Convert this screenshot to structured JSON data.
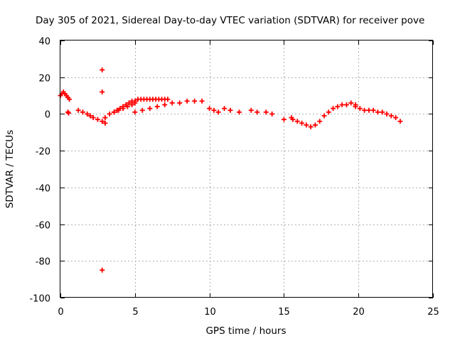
{
  "chart_data": {
    "type": "scatter",
    "title": "Day 305 of 2021, Sidereal Day-to-day VTEC variation (SDTVAR) for receiver pove",
    "xlabel": "GPS time / hours",
    "ylabel": "SDTVAR / TECUs",
    "xlim": [
      0,
      25
    ],
    "ylim": [
      -100,
      40
    ],
    "x_ticks": [
      0,
      5,
      10,
      15,
      20,
      25
    ],
    "y_ticks": [
      40,
      20,
      0,
      -20,
      -40,
      -60,
      -80,
      -100
    ],
    "grid": true,
    "marker": "plus",
    "color": "#ff0000",
    "series": [
      {
        "name": "SDTVAR",
        "segments": [
          {
            "x": [
              0.0,
              0.1,
              0.2,
              0.3,
              0.4,
              0.5,
              0.6
            ],
            "y": [
              10,
              11,
              12,
              11,
              10,
              9,
              8
            ]
          },
          {
            "x": [
              0.5,
              0.55
            ],
            "y": [
              1,
              0.5
            ]
          },
          {
            "x": [
              1.2,
              1.5,
              1.8,
              2.0,
              2.2,
              2.5,
              2.8,
              3.0
            ],
            "y": [
              2,
              1,
              0,
              -1,
              -2,
              -3,
              -4,
              -5
            ]
          },
          {
            "x": [
              3.0,
              3.3,
              3.6,
              3.9,
              4.2,
              4.5,
              4.8,
              5.0
            ],
            "y": [
              -2,
              0,
              1,
              2,
              3,
              4,
              5,
              6
            ]
          },
          {
            "x": [
              3.6,
              3.8,
              4.0,
              4.2,
              4.4,
              4.6,
              4.8,
              5.0,
              5.2,
              5.4,
              5.6,
              5.8,
              6.0,
              6.2,
              6.4,
              6.6,
              6.8,
              7.0,
              7.2
            ],
            "y": [
              1,
              2,
              3,
              4,
              5,
              6,
              7,
              7,
              8,
              8,
              8,
              8,
              8,
              8,
              8,
              8,
              8,
              8,
              8
            ]
          },
          {
            "x": [
              5.0,
              5.5,
              6.0,
              6.5,
              7.0,
              7.5,
              8.0,
              8.5,
              9.0,
              9.5
            ],
            "y": [
              1,
              2,
              3,
              4,
              5,
              6,
              6,
              7,
              7,
              7
            ]
          },
          {
            "x": [
              10.0,
              10.3,
              10.6,
              11.0,
              11.4,
              12.0
            ],
            "y": [
              3,
              2,
              1,
              3,
              2,
              1
            ]
          },
          {
            "x": [
              12.8,
              13.2,
              13.8,
              14.2,
              15.0,
              15.5
            ],
            "y": [
              2,
              1,
              1,
              0,
              -3,
              -2
            ]
          },
          {
            "x": [
              15.6,
              15.9,
              16.2,
              16.5,
              16.8,
              17.1,
              17.4,
              17.7,
              18.0,
              18.3,
              18.6,
              18.9,
              19.2,
              19.5,
              19.8
            ],
            "y": [
              -3,
              -4,
              -5,
              -6,
              -7,
              -6,
              -4,
              -1,
              1,
              3,
              4,
              5,
              5,
              6,
              5
            ]
          },
          {
            "x": [
              19.8,
              20.1,
              20.4,
              20.7,
              21.0,
              21.3,
              21.6,
              21.9,
              22.2,
              22.5,
              22.8
            ],
            "y": [
              4,
              3,
              2,
              2,
              2,
              1,
              1,
              0,
              -1,
              -2,
              -4
            ]
          },
          {
            "x": [
              2.8
            ],
            "y": [
              24
            ]
          },
          {
            "x": [
              2.8
            ],
            "y": [
              12
            ]
          },
          {
            "x": [
              2.8
            ],
            "y": [
              -85
            ]
          }
        ]
      }
    ]
  }
}
